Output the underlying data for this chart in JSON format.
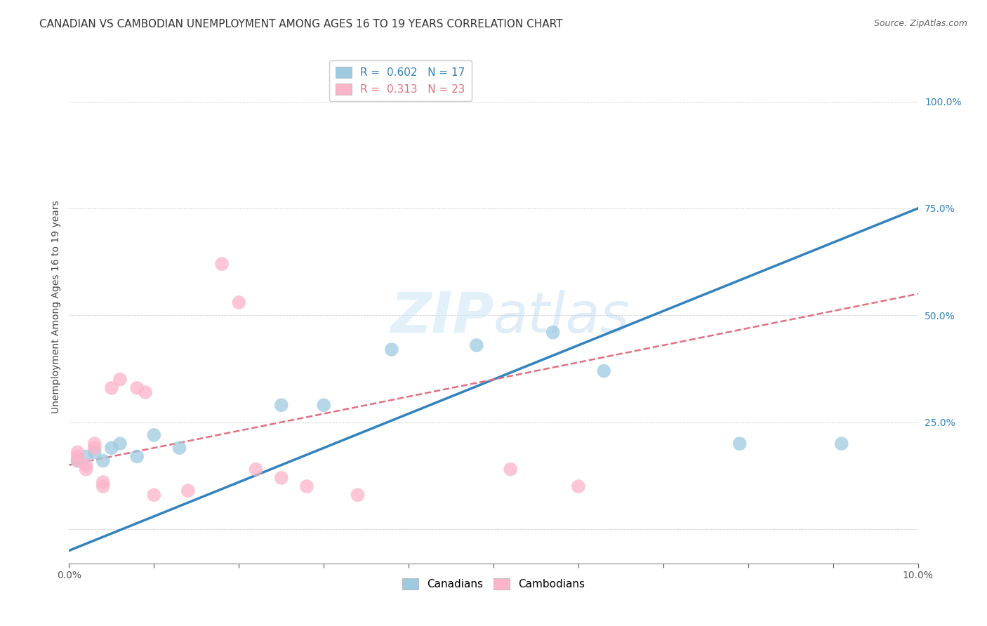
{
  "title": "CANADIAN VS CAMBODIAN UNEMPLOYMENT AMONG AGES 16 TO 19 YEARS CORRELATION CHART",
  "source": "Source: ZipAtlas.com",
  "ylabel": "Unemployment Among Ages 16 to 19 years",
  "xlim": [
    0.0,
    0.1
  ],
  "ylim": [
    -0.08,
    1.12
  ],
  "yticks": [
    0.0,
    0.25,
    0.5,
    0.75,
    1.0
  ],
  "ytick_labels": [
    "",
    "25.0%",
    "50.0%",
    "75.0%",
    "100.0%"
  ],
  "xticks": [
    0.0,
    0.01,
    0.02,
    0.03,
    0.04,
    0.05,
    0.06,
    0.07,
    0.08,
    0.09,
    0.1
  ],
  "xtick_labels": [
    "0.0%",
    "",
    "",
    "",
    "",
    "",
    "",
    "",
    "",
    "",
    "10.0%"
  ],
  "canadian_x": [
    0.001,
    0.002,
    0.003,
    0.004,
    0.005,
    0.006,
    0.008,
    0.01,
    0.013,
    0.025,
    0.03,
    0.038,
    0.048,
    0.057,
    0.063,
    0.079,
    0.091
  ],
  "canadian_y": [
    0.16,
    0.17,
    0.18,
    0.16,
    0.19,
    0.2,
    0.17,
    0.22,
    0.19,
    0.29,
    0.29,
    0.42,
    0.43,
    0.46,
    0.37,
    0.2,
    0.2
  ],
  "cambodian_x": [
    0.001,
    0.001,
    0.001,
    0.002,
    0.002,
    0.003,
    0.003,
    0.004,
    0.004,
    0.005,
    0.006,
    0.008,
    0.009,
    0.01,
    0.014,
    0.018,
    0.02,
    0.022,
    0.025,
    0.028,
    0.034,
    0.052,
    0.06
  ],
  "cambodian_y": [
    0.16,
    0.17,
    0.18,
    0.14,
    0.15,
    0.2,
    0.19,
    0.1,
    0.11,
    0.33,
    0.35,
    0.33,
    0.32,
    0.08,
    0.09,
    0.62,
    0.53,
    0.14,
    0.12,
    0.1,
    0.08,
    0.14,
    0.1
  ],
  "canadian_R": 0.602,
  "canadian_N": 17,
  "cambodian_R": 0.313,
  "cambodian_N": 23,
  "canadian_color": "#9ecae1",
  "cambodian_color": "#fbb4c9",
  "canadian_line_color": "#3182bd",
  "cambodian_line_color": "#e07080",
  "background_color": "#ffffff",
  "watermark_color": "#d0e8f5",
  "title_fontsize": 11,
  "axis_label_fontsize": 10,
  "tick_fontsize": 10,
  "legend_fontsize": 11,
  "source_fontsize": 9
}
